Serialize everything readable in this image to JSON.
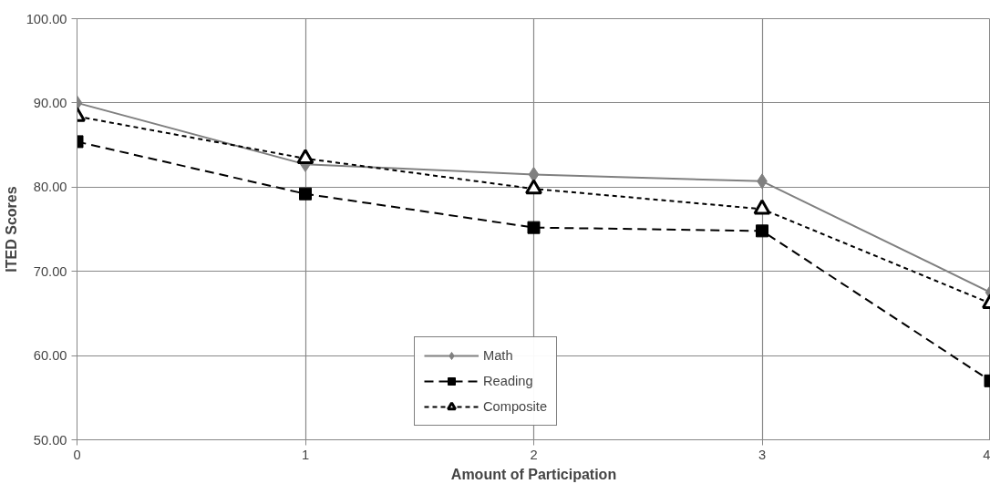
{
  "chart_data": {
    "type": "line",
    "xlabel": "Amount of Participation",
    "ylabel": "ITED Scores",
    "x": [
      0,
      1,
      2,
      3,
      4
    ],
    "xlim": [
      0,
      4
    ],
    "xticks": [
      0,
      1,
      2,
      3,
      4
    ],
    "ylim": [
      50,
      100
    ],
    "yticks": [
      {
        "value": 50,
        "label": "50.00"
      },
      {
        "value": 60,
        "label": "60.00"
      },
      {
        "value": 70,
        "label": "70.00"
      },
      {
        "value": 80,
        "label": "80.00"
      },
      {
        "value": 90,
        "label": "90.00"
      },
      {
        "value": 100,
        "label": "100.00"
      }
    ],
    "grid": true,
    "legend": "bottom",
    "series": [
      {
        "name": "Math",
        "color": "#808080",
        "marker": "diamond",
        "line_style": "solid",
        "values": [
          90.0,
          82.7,
          81.5,
          80.7,
          67.5
        ]
      },
      {
        "name": "Reading",
        "color": "#000000",
        "marker": "square",
        "line_style": "dashed",
        "values": [
          85.4,
          79.2,
          75.2,
          74.8,
          57.0
        ]
      },
      {
        "name": "Composite",
        "color": "#000000",
        "marker": "triangle",
        "line_style": "dotted",
        "values": [
          88.4,
          83.4,
          79.8,
          77.4,
          66.2
        ]
      }
    ]
  }
}
